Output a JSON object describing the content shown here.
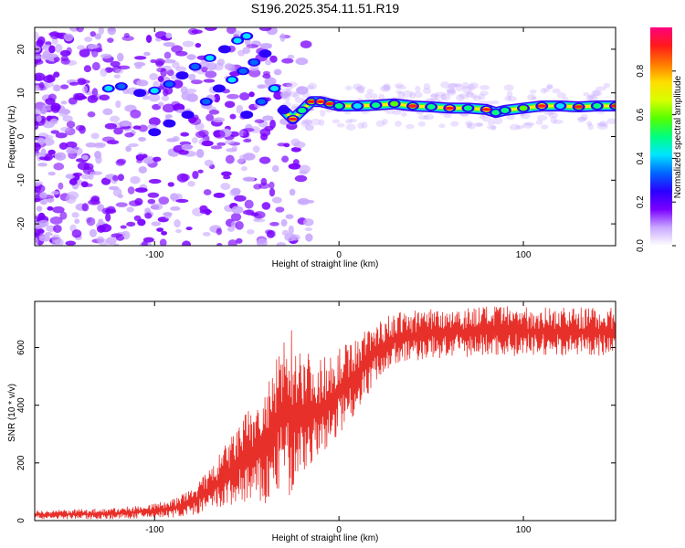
{
  "title": "S196.2025.354.11.51.R19",
  "chart_data": [
    {
      "type": "heatmap",
      "name": "spectrogram",
      "xlabel": "Height of straight line (km)",
      "ylabel": "Frequency (Hz)",
      "xlim": [
        -165,
        150
      ],
      "ylim": [
        -25,
        25
      ],
      "xticks": [
        -100,
        0,
        100
      ],
      "xtick_labels": [
        "-100",
        "0",
        "100"
      ],
      "yticks": [
        -20,
        -10,
        0,
        10,
        20
      ],
      "ytick_labels": [
        "-20",
        "-10",
        "0",
        "10",
        "20"
      ],
      "colorbar": {
        "label": "Normalized spectral amplitude",
        "range": [
          0,
          1
        ],
        "ticks": [
          0.0,
          0.2,
          0.4,
          0.6,
          0.8
        ],
        "tick_labels": [
          "0.0",
          "0.2",
          "0.4",
          "0.6",
          "0.8"
        ],
        "colors": [
          "#ffffff",
          "#c9a8ff",
          "#7a00ff",
          "#2a00ff",
          "#0066ff",
          "#00e5ff",
          "#00ff7f",
          "#55ff00",
          "#d8ff00",
          "#ffdd00",
          "#ff7700",
          "#ff1a1a",
          "#ff007f"
        ]
      },
      "ridge_points": [
        [
          -125,
          11
        ],
        [
          -118,
          11.5
        ],
        [
          -108,
          10
        ],
        [
          -100,
          10.5
        ],
        [
          -92,
          12
        ],
        [
          -85,
          14
        ],
        [
          -78,
          16
        ],
        [
          -70,
          18
        ],
        [
          -62,
          20
        ],
        [
          -55,
          22
        ],
        [
          -50,
          23
        ],
        [
          -100,
          1
        ],
        [
          -92,
          3
        ],
        [
          -82,
          5
        ],
        [
          -72,
          8
        ],
        [
          -65,
          11
        ],
        [
          -58,
          13
        ],
        [
          -52,
          15
        ],
        [
          -46,
          17
        ],
        [
          -40,
          19
        ],
        [
          -50,
          5
        ],
        [
          -42,
          8
        ],
        [
          -35,
          11
        ],
        [
          -30,
          6
        ],
        [
          -25,
          4
        ],
        [
          -20,
          6
        ],
        [
          -15,
          8
        ],
        [
          -10,
          8
        ],
        [
          -5,
          7.5
        ],
        [
          0,
          7
        ],
        [
          10,
          7
        ],
        [
          20,
          7.2
        ],
        [
          30,
          7.5
        ],
        [
          40,
          7
        ],
        [
          50,
          6.8
        ],
        [
          60,
          6.5
        ],
        [
          70,
          6.5
        ],
        [
          80,
          6.2
        ],
        [
          85,
          5.5
        ],
        [
          90,
          6
        ],
        [
          100,
          6.5
        ],
        [
          110,
          7
        ],
        [
          120,
          7
        ],
        [
          130,
          6.8
        ],
        [
          140,
          7
        ],
        [
          150,
          7
        ]
      ]
    },
    {
      "type": "line",
      "name": "snr",
      "xlabel": "Height of straight line (km)",
      "ylabel": "SNR (10 * v/v)",
      "xlim": [
        -165,
        150
      ],
      "ylim": [
        0,
        760
      ],
      "xticks": [
        -100,
        0,
        100
      ],
      "xtick_labels": [
        "-100",
        "0",
        "100"
      ],
      "yticks": [
        0,
        200,
        400,
        600
      ],
      "ytick_labels": [
        "0",
        "200",
        "400",
        "600"
      ],
      "color": "#e8302a",
      "envelope": {
        "x": [
          -165,
          -140,
          -120,
          -100,
          -90,
          -80,
          -70,
          -60,
          -50,
          -40,
          -30,
          -25,
          -20,
          -15,
          -10,
          -5,
          0,
          10,
          20,
          30,
          50,
          80,
          120,
          150
        ],
        "low": [
          5,
          5,
          5,
          8,
          10,
          15,
          30,
          40,
          60,
          40,
          120,
          50,
          160,
          180,
          200,
          240,
          300,
          380,
          480,
          540,
          560,
          570,
          570,
          570
        ],
        "high": [
          35,
          40,
          45,
          60,
          75,
          110,
          180,
          280,
          380,
          450,
          630,
          680,
          600,
          580,
          560,
          590,
          600,
          640,
          690,
          720,
          740,
          745,
          740,
          740
        ]
      }
    }
  ]
}
